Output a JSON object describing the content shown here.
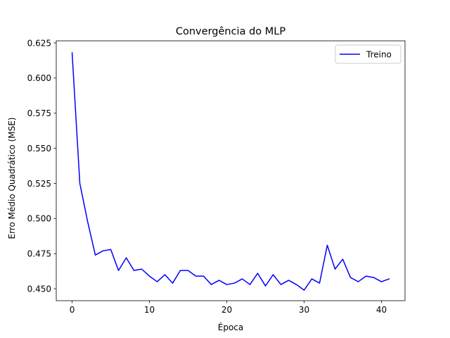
{
  "chart_data": {
    "type": "line",
    "title": "Convergência do MLP",
    "xlabel": "Época",
    "ylabel": "Erro Médio Quadrático (MSE)",
    "xlim": [
      -2.05,
      43.05
    ],
    "ylim": [
      0.4415,
      0.6265
    ],
    "xticks": [
      0,
      10,
      20,
      30,
      40
    ],
    "xtick_labels": [
      "0",
      "10",
      "20",
      "30",
      "40"
    ],
    "yticks": [
      0.45,
      0.475,
      0.5,
      0.525,
      0.55,
      0.575,
      0.6,
      0.625
    ],
    "ytick_labels": [
      "0.450",
      "0.475",
      "0.500",
      "0.525",
      "0.550",
      "0.575",
      "0.600",
      "0.625"
    ],
    "grid": false,
    "legend": {
      "position": "top-right"
    },
    "series": [
      {
        "name": "Treino",
        "color": "#0000ff",
        "x": [
          0,
          1,
          2,
          3,
          4,
          5,
          6,
          7,
          8,
          9,
          10,
          11,
          12,
          13,
          14,
          15,
          16,
          17,
          18,
          19,
          20,
          21,
          22,
          23,
          24,
          25,
          26,
          27,
          28,
          29,
          30,
          31,
          32,
          33,
          34,
          35,
          36,
          37,
          38,
          39,
          40,
          41
        ],
        "y": [
          0.618,
          0.525,
          0.498,
          0.474,
          0.477,
          0.478,
          0.463,
          0.472,
          0.463,
          0.464,
          0.459,
          0.455,
          0.46,
          0.454,
          0.463,
          0.463,
          0.459,
          0.459,
          0.453,
          0.456,
          0.453,
          0.454,
          0.457,
          0.453,
          0.461,
          0.452,
          0.46,
          0.453,
          0.456,
          0.453,
          0.449,
          0.457,
          0.454,
          0.481,
          0.464,
          0.471,
          0.458,
          0.455,
          0.459,
          0.458,
          0.455,
          0.457
        ]
      }
    ]
  }
}
